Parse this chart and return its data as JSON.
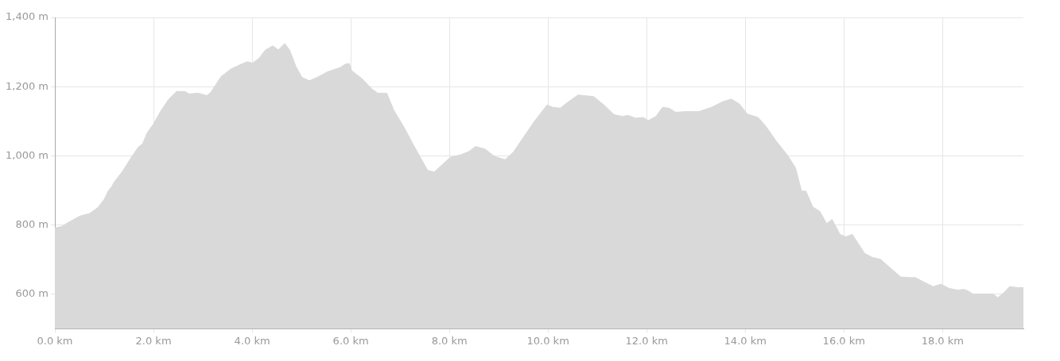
{
  "chart_data": {
    "type": "area",
    "x": [
      0,
      0.13,
      0.29,
      0.51,
      0.7,
      0.87,
      1.0,
      1.08,
      1.16,
      1.19,
      1.36,
      1.52,
      1.69,
      1.78,
      1.87,
      2.0,
      2.14,
      2.31,
      2.47,
      2.64,
      2.72,
      2.91,
      3.08,
      3.16,
      3.37,
      3.57,
      3.78,
      3.9,
      4.01,
      4.14,
      4.27,
      4.42,
      4.53,
      4.66,
      4.76,
      4.89,
      5.01,
      5.16,
      5.32,
      5.53,
      5.78,
      5.89,
      5.97,
      6.02,
      6.22,
      6.43,
      6.55,
      6.73,
      6.87,
      7.09,
      7.25,
      7.41,
      7.56,
      7.69,
      7.82,
      8.02,
      8.23,
      8.4,
      8.53,
      8.72,
      8.92,
      9.13,
      9.3,
      9.48,
      9.71,
      9.98,
      10.1,
      10.25,
      10.4,
      10.61,
      10.93,
      11.15,
      11.34,
      11.51,
      11.62,
      11.78,
      11.93,
      12.03,
      12.19,
      12.32,
      12.45,
      12.59,
      12.81,
      13.06,
      13.31,
      13.55,
      13.72,
      13.88,
      14.04,
      14.26,
      14.42,
      14.62,
      14.86,
      15.02,
      15.14,
      15.23,
      15.37,
      15.51,
      15.65,
      15.76,
      15.92,
      16.04,
      16.17,
      16.42,
      16.58,
      16.74,
      16.99,
      17.15,
      17.32,
      17.45,
      17.61,
      17.81,
      17.97,
      18.13,
      18.3,
      18.43,
      18.51,
      18.62,
      18.95,
      19.03,
      19.12,
      19.25,
      19.36,
      19.53,
      19.64
    ],
    "series": [
      {
        "color": "#d9d9d9",
        "values": [
          792,
          795,
          809,
          826,
          833,
          850,
          874,
          898,
          912,
          922,
          953,
          989,
          1025,
          1035,
          1066,
          1092,
          1128,
          1164,
          1186,
          1186,
          1179,
          1181,
          1174,
          1183,
          1229,
          1251,
          1265,
          1272,
          1268,
          1282,
          1306,
          1318,
          1306,
          1325,
          1306,
          1258,
          1227,
          1217,
          1227,
          1243,
          1255,
          1265,
          1267,
          1246,
          1224,
          1193,
          1181,
          1181,
          1133,
          1080,
          1037,
          996,
          958,
          953,
          970,
          996,
          1003,
          1013,
          1027,
          1020,
          998,
          989,
          1011,
          1049,
          1097,
          1147,
          1140,
          1138,
          1155,
          1176,
          1171,
          1145,
          1119,
          1114,
          1117,
          1109,
          1111,
          1102,
          1114,
          1140,
          1138,
          1126,
          1128,
          1128,
          1140,
          1157,
          1164,
          1150,
          1121,
          1111,
          1085,
          1044,
          1001,
          965,
          898,
          898,
          852,
          840,
          804,
          816,
          773,
          766,
          773,
          718,
          706,
          701,
          670,
          650,
          648,
          648,
          636,
          622,
          629,
          617,
          612,
          614,
          610,
          600,
          600,
          600,
          590,
          605,
          622,
          619,
          619
        ]
      }
    ],
    "xlim": [
      0,
      19.64
    ],
    "xticks": [
      {
        "value": 0,
        "label": "0.0 km"
      },
      {
        "value": 2,
        "label": "2.0 km"
      },
      {
        "value": 4,
        "label": "4.0 km"
      },
      {
        "value": 6,
        "label": "6.0 km"
      },
      {
        "value": 8,
        "label": "8.0 km"
      },
      {
        "value": 10,
        "label": "10.0 km"
      },
      {
        "value": 12,
        "label": "12.0 km"
      },
      {
        "value": 14,
        "label": "14.0 km"
      },
      {
        "value": 16,
        "label": "16.0 km"
      },
      {
        "value": 18,
        "label": "18.0 km"
      }
    ],
    "ylim": [
      500,
      1400
    ],
    "yticks": [
      {
        "value": 600,
        "label": "600 m"
      },
      {
        "value": 800,
        "label": "800 m"
      },
      {
        "value": 1000,
        "label": "1,000 m"
      },
      {
        "value": 1200,
        "label": "1,200 m"
      },
      {
        "value": 1400,
        "label": "1,400 m"
      }
    ],
    "grid": true
  }
}
